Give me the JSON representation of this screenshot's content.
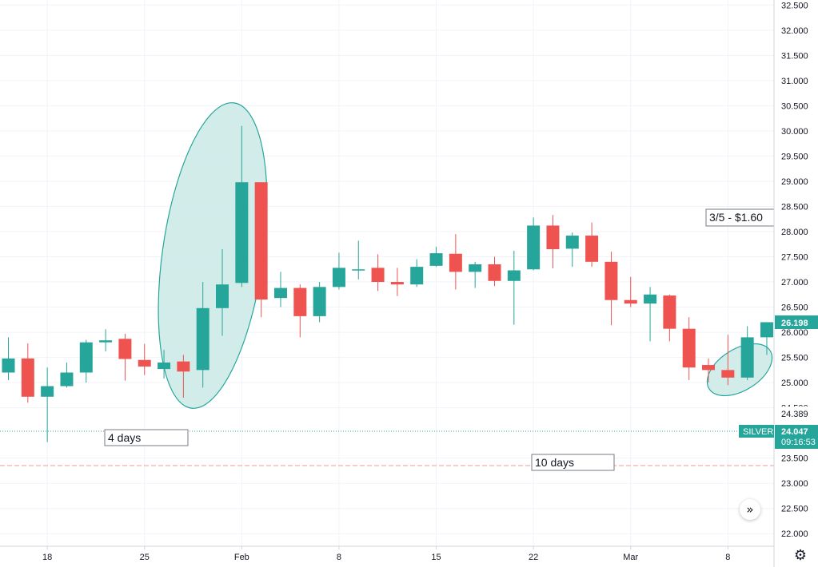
{
  "chart_data": {
    "type": "candlestick",
    "symbol": "SILVER",
    "last_price": "26.198",
    "current_price": "24.047",
    "countdown": "09:16:53",
    "level_label": "24.389",
    "ylim": [
      21.75,
      32.6
    ],
    "y_ticks": [
      "22.000",
      "22.500",
      "23.000",
      "23.500",
      "24.500",
      "25.000",
      "25.500",
      "26.000",
      "26.500",
      "27.000",
      "27.500",
      "28.000",
      "28.500",
      "29.000",
      "29.500",
      "30.000",
      "30.500",
      "31.000",
      "31.500",
      "32.000",
      "32.500"
    ],
    "x_ticks": [
      {
        "label": "18",
        "bar": 2
      },
      {
        "label": "25",
        "bar": 7
      },
      {
        "label": "Feb",
        "bar": 12
      },
      {
        "label": "8",
        "bar": 17
      },
      {
        "label": "15",
        "bar": 22
      },
      {
        "label": "22",
        "bar": 27
      },
      {
        "label": "Mar",
        "bar": 32
      },
      {
        "label": "8",
        "bar": 37
      }
    ],
    "candles": [
      {
        "o": 25.2,
        "h": 25.9,
        "l": 25.05,
        "c": 25.48
      },
      {
        "o": 25.48,
        "h": 25.78,
        "l": 24.6,
        "c": 24.72
      },
      {
        "o": 24.72,
        "h": 25.3,
        "l": 23.82,
        "c": 24.93
      },
      {
        "o": 24.93,
        "h": 25.4,
        "l": 24.9,
        "c": 25.2
      },
      {
        "o": 25.2,
        "h": 25.85,
        "l": 25.0,
        "c": 25.8
      },
      {
        "o": 25.8,
        "h": 26.06,
        "l": 25.62,
        "c": 25.84
      },
      {
        "o": 25.87,
        "h": 25.97,
        "l": 25.04,
        "c": 25.47
      },
      {
        "o": 25.45,
        "h": 25.77,
        "l": 25.15,
        "c": 25.32
      },
      {
        "o": 25.27,
        "h": 25.65,
        "l": 25.08,
        "c": 25.4
      },
      {
        "o": 25.42,
        "h": 25.55,
        "l": 24.7,
        "c": 25.22
      },
      {
        "o": 25.25,
        "h": 27.0,
        "l": 24.9,
        "c": 26.48
      },
      {
        "o": 26.48,
        "h": 27.65,
        "l": 25.93,
        "c": 26.95
      },
      {
        "o": 26.98,
        "h": 30.1,
        "l": 26.9,
        "c": 28.98
      },
      {
        "o": 28.98,
        "h": 28.98,
        "l": 26.3,
        "c": 26.65
      },
      {
        "o": 26.68,
        "h": 27.2,
        "l": 26.5,
        "c": 26.88
      },
      {
        "o": 26.88,
        "h": 26.95,
        "l": 25.9,
        "c": 26.32
      },
      {
        "o": 26.32,
        "h": 27.0,
        "l": 26.2,
        "c": 26.9
      },
      {
        "o": 26.9,
        "h": 27.58,
        "l": 26.85,
        "c": 27.28
      },
      {
        "o": 27.25,
        "h": 27.82,
        "l": 27.05,
        "c": 27.25
      },
      {
        "o": 27.28,
        "h": 27.55,
        "l": 26.82,
        "c": 27.0
      },
      {
        "o": 27.0,
        "h": 27.28,
        "l": 26.72,
        "c": 26.95
      },
      {
        "o": 26.95,
        "h": 27.45,
        "l": 26.9,
        "c": 27.3
      },
      {
        "o": 27.32,
        "h": 27.7,
        "l": 27.3,
        "c": 27.57
      },
      {
        "o": 27.56,
        "h": 27.95,
        "l": 26.85,
        "c": 27.2
      },
      {
        "o": 27.2,
        "h": 27.4,
        "l": 26.88,
        "c": 27.35
      },
      {
        "o": 27.35,
        "h": 27.5,
        "l": 26.92,
        "c": 27.02
      },
      {
        "o": 27.02,
        "h": 27.62,
        "l": 26.15,
        "c": 27.23
      },
      {
        "o": 27.25,
        "h": 28.28,
        "l": 27.23,
        "c": 28.12
      },
      {
        "o": 28.12,
        "h": 28.33,
        "l": 27.27,
        "c": 27.65
      },
      {
        "o": 27.66,
        "h": 27.98,
        "l": 27.3,
        "c": 27.92
      },
      {
        "o": 27.92,
        "h": 28.18,
        "l": 27.3,
        "c": 27.4
      },
      {
        "o": 27.4,
        "h": 27.6,
        "l": 26.14,
        "c": 26.64
      },
      {
        "o": 26.64,
        "h": 27.1,
        "l": 26.5,
        "c": 26.57
      },
      {
        "o": 26.57,
        "h": 26.9,
        "l": 25.82,
        "c": 26.75
      },
      {
        "o": 26.73,
        "h": 26.75,
        "l": 25.82,
        "c": 26.07
      },
      {
        "o": 26.07,
        "h": 26.3,
        "l": 25.05,
        "c": 25.3
      },
      {
        "o": 25.35,
        "h": 25.48,
        "l": 25.0,
        "c": 25.25
      },
      {
        "o": 25.25,
        "h": 25.95,
        "l": 24.95,
        "c": 25.1
      },
      {
        "o": 25.1,
        "h": 26.12,
        "l": 25.05,
        "c": 25.9
      },
      {
        "o": 25.9,
        "h": 26.2,
        "l": 25.55,
        "c": 26.2
      }
    ],
    "annotations": {
      "note_price": "3/5 - $1.60",
      "note_4days": "4 days",
      "note_10days": "10 days"
    },
    "colors": {
      "up": "#26a69a",
      "down": "#ef5350",
      "ellipse_fill": "#cdeae8",
      "ellipse_stroke": "#26a69a",
      "grid": "#f0f3fa",
      "dotted_line": "#26a69a",
      "hline": "#ef9a9a"
    }
  },
  "icons": {
    "scroll_right": "»",
    "settings": "⚙"
  }
}
